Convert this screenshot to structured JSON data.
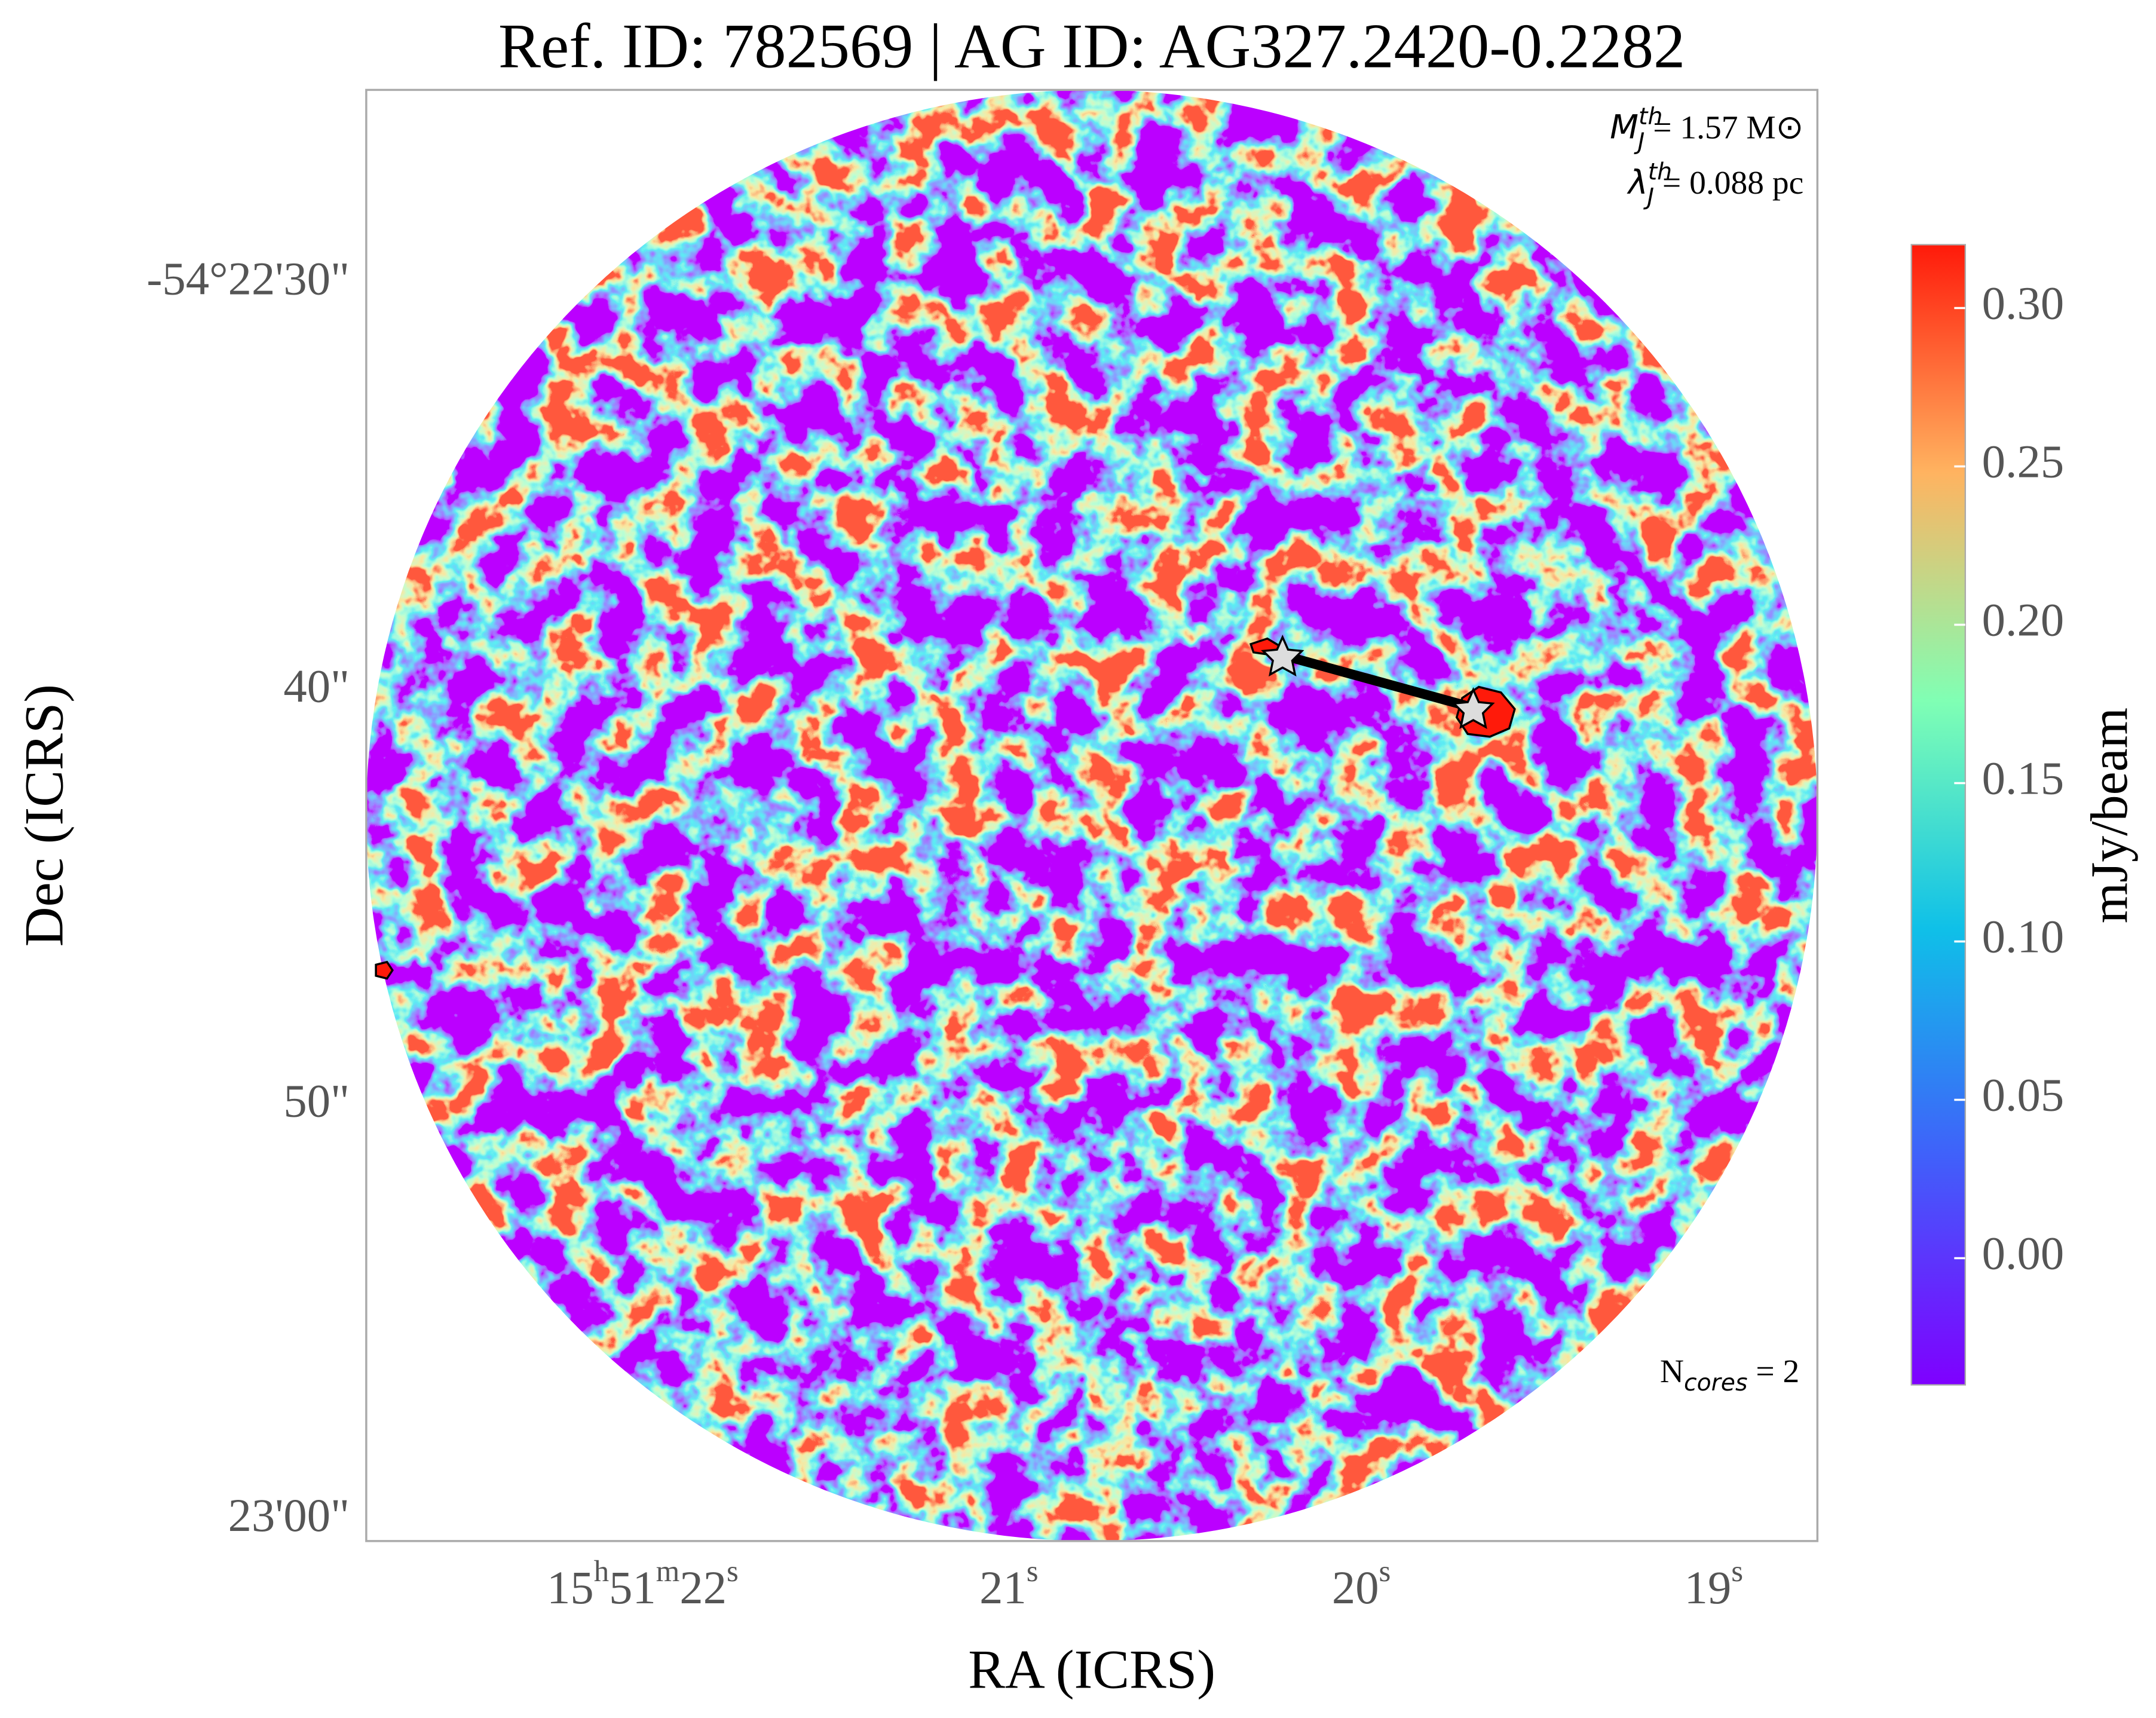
{
  "chart_data": {
    "type": "image",
    "title": "Ref. ID: 782569 | AG ID: AG327.2420-0.2282",
    "x_label": "RA (ICRS)",
    "y_label": "Dec (ICRS)",
    "xtick_labels": [
      [
        "15",
        "h",
        "51",
        "m",
        "22",
        "s"
      ],
      [
        "21",
        "s"
      ],
      [
        "20",
        "s"
      ],
      [
        "19",
        "s"
      ]
    ],
    "ytick_labels": [
      "-54°22'30\"",
      "40\"",
      "50\"",
      "23'00\""
    ],
    "annotations": [
      {
        "symbol": "M",
        "sub": "J",
        "sup": "th",
        "text": "= 1.57 M⊙"
      },
      {
        "symbol": "λ",
        "sub": "J",
        "sup": "th",
        "text": "= 0.088 pc"
      },
      {
        "symbol": "N",
        "sub": "cores",
        "text": " = 2"
      }
    ],
    "colorbar": {
      "label": "mJy/beam",
      "lim": [
        -0.04,
        0.32
      ],
      "ticks": [
        {
          "value": 0,
          "label": "0.00"
        },
        0.05,
        {
          "value": 0.1,
          "label": "0.10"
        },
        0.15,
        {
          "value": 0.2,
          "label": "0.20"
        },
        0.25,
        {
          "value": 0.3,
          "label": "0.30"
        }
      ]
    }
  }
}
